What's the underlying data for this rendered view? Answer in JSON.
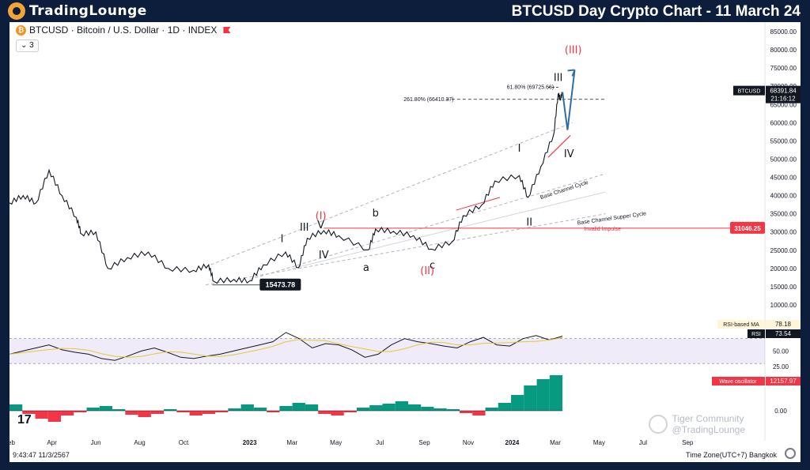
{
  "header": {
    "brand": "TradingLounge",
    "title": "BTCUSD Day Crypto Chart - 11 March 24"
  },
  "symbol": {
    "label": "BTCUSD · Bitcoin / U.S. Dollar · 1D · INDEX",
    "layers": "3",
    "coin_glyph": "₿"
  },
  "footer": {
    "time": "9:43:47 11/3/2567",
    "timezone": "Time Zone(UTC+7) Bangkok",
    "tv_logo": "17",
    "watermark": "Tiger Community",
    "watermark2": "@TradingLounge"
  },
  "colors": {
    "accent": "#f2a33a",
    "bg": "#0c1e3c",
    "price_line": "#131722",
    "red": "#f23645",
    "green": "#089981",
    "blue": "#2f6fa6",
    "rsi_band": "#7e57c2",
    "rsi_ma": "#e3c83a"
  },
  "chart_data": {
    "type": "line",
    "title": "BTCUSD · Bitcoin / U.S. Dollar · 1D · INDEX",
    "y_ticks": [
      "85000.00",
      "80000.00",
      "75000.00",
      "70000.00",
      "65000.00",
      "60000.00",
      "55000.00",
      "50000.00",
      "45000.00",
      "40000.00",
      "35000.00",
      "30000.00",
      "25000.00",
      "20000.00",
      "15000.00",
      "10000.00"
    ],
    "ylim": [
      10000,
      85000
    ],
    "x_ticks": [
      "Feb",
      "Apr",
      "Jun",
      "Aug",
      "Oct",
      "2023",
      "Mar",
      "May",
      "Jul",
      "Sep",
      "Nov",
      "2024",
      "Mar",
      "May",
      "Jul",
      "Sep"
    ],
    "xlim": [
      "2022-02-01",
      "2024-09-15"
    ],
    "series": [
      {
        "x": [
          "2022-02-01",
          "2022-02-20",
          "2022-03-10",
          "2022-03-28",
          "2022-04-15",
          "2022-05-05",
          "2022-05-12",
          "2022-06-01",
          "2022-06-18",
          "2022-07-15",
          "2022-08-13",
          "2022-09-10",
          "2022-10-15",
          "2022-11-05",
          "2022-11-12",
          "2022-12-10",
          "2023-01-01",
          "2023-01-20",
          "2023-02-20",
          "2023-03-10",
          "2023-03-22",
          "2023-04-14",
          "2023-05-05",
          "2023-06-15",
          "2023-06-25",
          "2023-07-20",
          "2023-08-17",
          "2023-09-11",
          "2023-10-10",
          "2023-10-25",
          "2023-11-20",
          "2023-12-08",
          "2024-01-11",
          "2024-01-23",
          "2024-02-10",
          "2024-02-28",
          "2024-03-05",
          "2024-03-08",
          "2024-03-11"
        ],
        "values": [
          38000,
          40000,
          38000,
          47000,
          40000,
          34000,
          29500,
          30000,
          20000,
          23000,
          24500,
          20000,
          19500,
          21000,
          16500,
          17000,
          16600,
          21000,
          24500,
          20200,
          28300,
          30400,
          29000,
          25100,
          30800,
          30200,
          29000,
          25300,
          27400,
          34500,
          37500,
          44000,
          45500,
          39500,
          48000,
          57000,
          68000,
          66500,
          68391
        ]
      }
    ],
    "annotations": {
      "wave_labels": [
        "(I)",
        "V",
        "III",
        "I",
        "IV",
        "b",
        "a",
        "c",
        "(II)",
        "I",
        "II",
        "III",
        "IV",
        "(III)"
      ],
      "fib_labels": [
        "261.80% (66410.37)",
        "61.80% (69725.66)"
      ],
      "level_labels": [
        "15473.78",
        "31046.25"
      ],
      "invalid_label": "Invalid Impulse",
      "channel_labels": [
        "Base Channel Cycle",
        "Base Channel Supper Cycle"
      ],
      "fib_261": 66410.37,
      "fib_618": 69725.66,
      "invalid_level": 31046.25,
      "low_level": 15473.78
    },
    "price_tag": {
      "value": "68391.84",
      "timer": "21:16:12",
      "symbol": "BTCUSD"
    },
    "rsi": {
      "ma_label": "RSI-based MA",
      "ma_value": "78.18",
      "rsi_label": "RSI",
      "rsi_value": "73.54",
      "ticks": [
        "50.00",
        "25.00"
      ],
      "ylim": [
        20,
        90
      ],
      "values": [
        45,
        50,
        55,
        60,
        52,
        48,
        45,
        38,
        35,
        42,
        50,
        55,
        48,
        40,
        38,
        42,
        45,
        50,
        55,
        60,
        65,
        80,
        70,
        55,
        62,
        60,
        52,
        40,
        45,
        60,
        70,
        65,
        62,
        58,
        55,
        65,
        72,
        60,
        58,
        70,
        75,
        68,
        74
      ]
    },
    "wave_oscillator": {
      "label": "Wave oscillator",
      "value": "12157.97",
      "tick": "0.00",
      "values": [
        8,
        -4,
        -10,
        -14,
        -6,
        -2,
        4,
        6,
        2,
        -5,
        -8,
        -4,
        2,
        -2,
        -6,
        -4,
        -2,
        3,
        8,
        4,
        -2,
        6,
        10,
        8,
        -4,
        -6,
        -2,
        4,
        7,
        9,
        12,
        8,
        5,
        3,
        2,
        -3,
        -6,
        4,
        10,
        20,
        32,
        40,
        45
      ]
    }
  }
}
